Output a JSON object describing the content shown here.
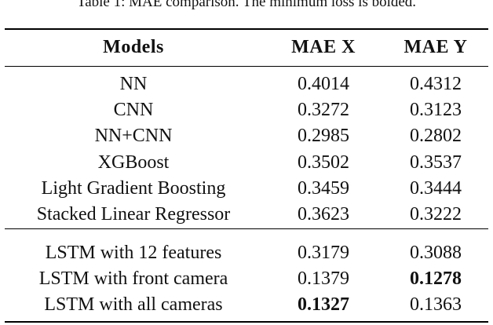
{
  "table": {
    "caption": "Table 1: MAE comparison. The minimum loss is bolded.",
    "columns": [
      "Models",
      "MAE X",
      "MAE Y"
    ],
    "groups": [
      [
        {
          "model": "NN",
          "mae_x": "0.4014",
          "mae_y": "0.4312"
        },
        {
          "model": "CNN",
          "mae_x": "0.3272",
          "mae_y": "0.3123"
        },
        {
          "model": "NN+CNN",
          "mae_x": "0.2985",
          "mae_y": "0.2802"
        },
        {
          "model": "XGBoost",
          "mae_x": "0.3502",
          "mae_y": "0.3537"
        },
        {
          "model": "Light Gradient Boosting",
          "mae_x": "0.3459",
          "mae_y": "0.3444"
        },
        {
          "model": "Stacked Linear Regressor",
          "mae_x": "0.3623",
          "mae_y": "0.3222"
        }
      ],
      [
        {
          "model": "LSTM with 12 features",
          "mae_x": "0.3179",
          "mae_y": "0.3088"
        },
        {
          "model": "LSTM with front camera",
          "mae_x": "0.1379",
          "mae_y": "0.1278",
          "bold": "mae_y"
        },
        {
          "model": "LSTM with all cameras",
          "mae_x": "0.1327",
          "mae_y": "0.1363",
          "bold": "mae_x"
        }
      ]
    ]
  }
}
